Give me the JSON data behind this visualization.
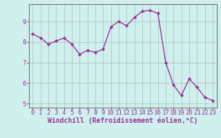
{
  "x": [
    0,
    1,
    2,
    3,
    4,
    5,
    6,
    7,
    8,
    9,
    10,
    11,
    12,
    13,
    14,
    15,
    16,
    17,
    18,
    19,
    20,
    21,
    22,
    23
  ],
  "y": [
    8.4,
    8.2,
    7.9,
    8.05,
    8.2,
    7.9,
    7.4,
    7.6,
    7.5,
    7.65,
    8.75,
    9.0,
    8.8,
    9.2,
    9.5,
    9.55,
    9.4,
    7.0,
    5.9,
    5.4,
    6.2,
    5.8,
    5.3,
    5.15
  ],
  "line_color": "#993399",
  "marker": "D",
  "marker_size": 2.2,
  "bg_color": "#cff0ec",
  "grid_color": "#aabbbb",
  "xlabel": "Windchill (Refroidissement éolien,°C)",
  "xlim": [
    -0.5,
    23.5
  ],
  "ylim": [
    4.8,
    9.85
  ],
  "yticks": [
    5,
    6,
    7,
    8,
    9
  ],
  "xticks": [
    0,
    1,
    2,
    3,
    4,
    5,
    6,
    7,
    8,
    9,
    10,
    11,
    12,
    13,
    14,
    15,
    16,
    17,
    18,
    19,
    20,
    21,
    22,
    23
  ],
  "xlabel_fontsize": 7.0,
  "tick_fontsize": 6.5,
  "line_width": 1.0,
  "spine_color": "#777777",
  "label_color": "#993399"
}
